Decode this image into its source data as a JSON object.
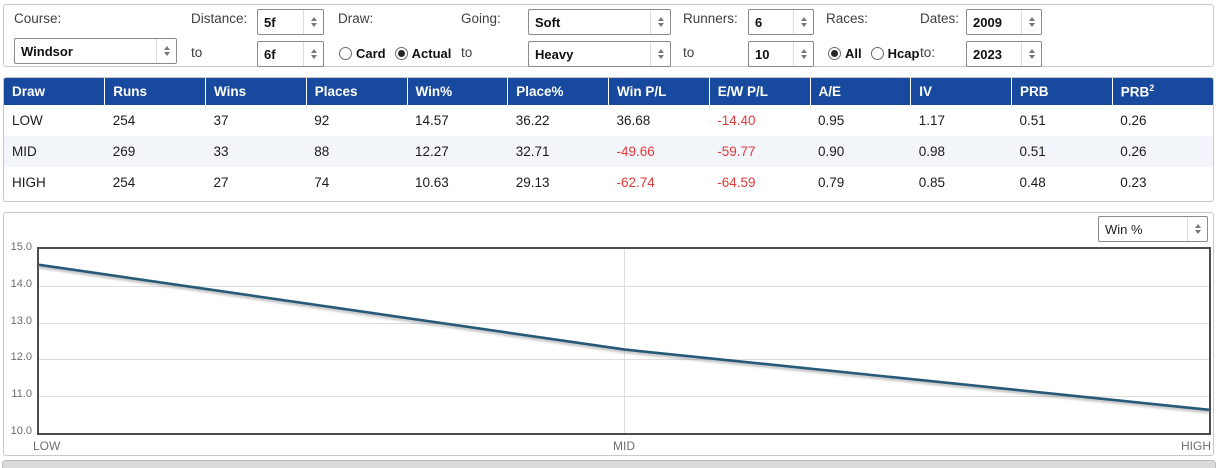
{
  "filters": {
    "course": {
      "label": "Course:",
      "value": "Windsor"
    },
    "distance": {
      "label": "Distance:",
      "to_label": "to",
      "from": "5f",
      "to": "6f"
    },
    "draw": {
      "label": "Draw:",
      "card_label": "Card",
      "card_selected": false,
      "actual_label": "Actual",
      "actual_selected": true
    },
    "going": {
      "label": "Going:",
      "to_label": "to",
      "from": "Soft",
      "to": "Heavy"
    },
    "runners": {
      "label": "Runners:",
      "to_label": "to",
      "from": "6",
      "to": "10"
    },
    "races": {
      "label": "Races:",
      "all_label": "All",
      "all_selected": true,
      "hcap_label": "Hcap",
      "hcap_selected": false
    },
    "dates": {
      "label": "Dates:",
      "to_label": "to:",
      "from": "2009",
      "to": "2023"
    }
  },
  "table": {
    "columns": [
      "Draw",
      "Runs",
      "Wins",
      "Places",
      "Win%",
      "Place%",
      "Win P/L",
      "E/W P/L",
      "A/E",
      "IV",
      "PRB",
      "PRB"
    ],
    "prb2_superscript": "2",
    "rows": [
      {
        "draw": "LOW",
        "runs": "254",
        "wins": "37",
        "places": "92",
        "win_pct": "14.57",
        "place_pct": "36.22",
        "win_pl": "36.68",
        "ew_pl": "-14.40",
        "ae": "0.95",
        "iv": "1.17",
        "prb": "0.51",
        "prb2": "0.26"
      },
      {
        "draw": "MID",
        "runs": "269",
        "wins": "33",
        "places": "88",
        "win_pct": "12.27",
        "place_pct": "32.71",
        "win_pl": "-49.66",
        "ew_pl": "-59.77",
        "ae": "0.90",
        "iv": "0.98",
        "prb": "0.51",
        "prb2": "0.26"
      },
      {
        "draw": "HIGH",
        "runs": "254",
        "wins": "27",
        "places": "74",
        "win_pct": "10.63",
        "place_pct": "29.13",
        "win_pl": "-62.74",
        "ew_pl": "-64.59",
        "ae": "0.79",
        "iv": "0.85",
        "prb": "0.48",
        "prb2": "0.23"
      }
    ]
  },
  "chart": {
    "metric_select": "Win %",
    "y_ticks": [
      "15.0",
      "14.0",
      "13.0",
      "12.0",
      "11.0",
      "10.0"
    ],
    "chart_data": {
      "type": "line",
      "categories": [
        "LOW",
        "MID",
        "HIGH"
      ],
      "series": [
        {
          "name": "Win %",
          "values": [
            14.57,
            12.27,
            10.63
          ]
        }
      ],
      "title": "",
      "xlabel": "",
      "ylabel": "",
      "ylim": [
        10.0,
        15.0
      ],
      "grid": true,
      "legend": "none",
      "line_color": "#265a78"
    }
  },
  "colors": {
    "header_blue": "#17499e",
    "negative_red": "#e03a3a",
    "alt_row": "#f2f5fa"
  }
}
